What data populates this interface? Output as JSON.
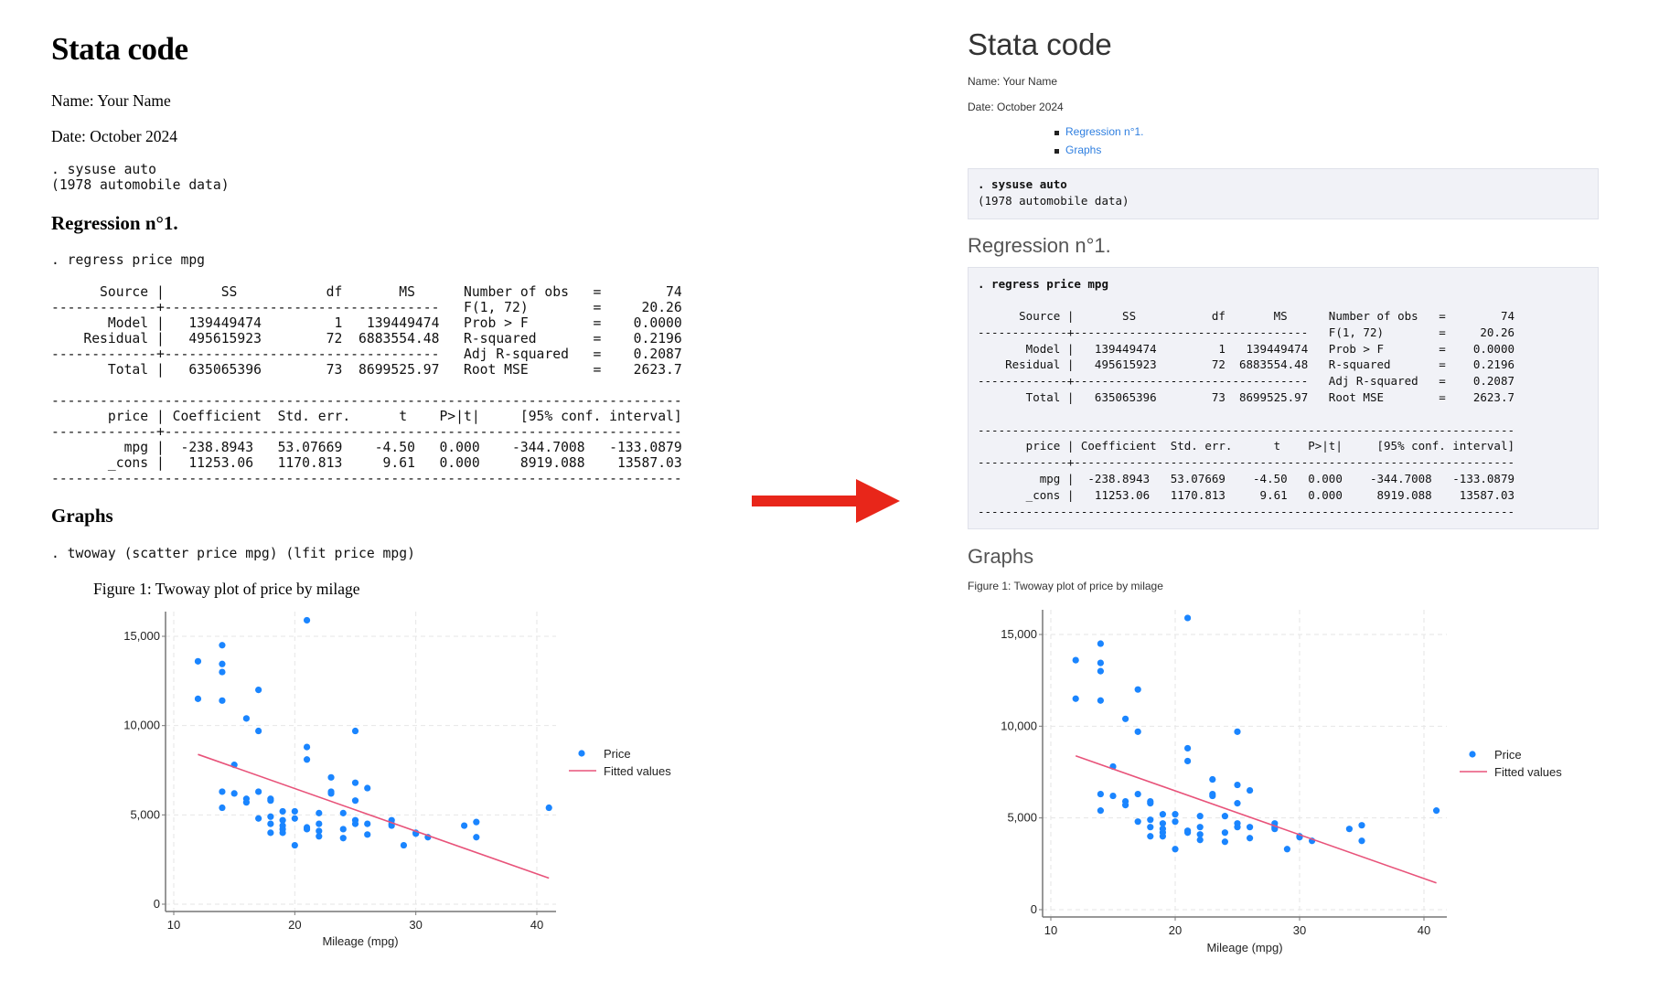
{
  "before": {
    "title": "Stata code",
    "name": "Name: Your Name",
    "date": "Date: October 2024",
    "code1": [
      ". sysuse auto",
      "(1978 automobile data)"
    ],
    "section1": "Regression n°1.",
    "cmd_regress": ". regress price mpg",
    "section2": "Graphs",
    "cmd_twoway": ". twoway (scatter price mpg) (lfit price mpg)",
    "figure_caption": "Figure 1: Twoway plot of price by milage"
  },
  "after": {
    "title": "Stata code",
    "name": "Name: Your Name",
    "date": "Date: October 2024",
    "toc": [
      "Regression n°1.",
      "Graphs"
    ],
    "code1": [
      ". sysuse auto",
      "(1978 automobile data)"
    ],
    "section1": "Regression n°1.",
    "cmd_regress": ". regress price mpg",
    "section2": "Graphs",
    "figure_caption": "Figure 1: Twoway plot of price by milage"
  },
  "regression_output": [
    "      Source |       SS           df       MS      Number of obs   =        74",
    "-------------+----------------------------------   F(1, 72)        =     20.26",
    "       Model |   139449474         1   139449474   Prob > F        =    0.0000",
    "    Residual |   495615923        72  6883554.48   R-squared       =    0.2196",
    "-------------+----------------------------------   Adj R-squared   =    0.2087",
    "       Total |   635065396        73  8699525.97   Root MSE        =    2623.7",
    "",
    "------------------------------------------------------------------------------",
    "       price | Coefficient  Std. err.      t    P>|t|     [95% conf. interval]",
    "-------------+----------------------------------------------------------------",
    "         mpg |  -238.8943   53.07669    -4.50   0.000    -344.7008   -133.0879",
    "       _cons |   11253.06   1170.813     9.61   0.000     8919.088    13587.03",
    "------------------------------------------------------------------------------"
  ],
  "colors": {
    "arrow": "#e8261a",
    "points": "#1a85ff",
    "fit": "#e8537a",
    "link": "#2f7fe0"
  },
  "chart_data": {
    "type": "scatter",
    "xlabel": "Mileage (mpg)",
    "ylabel": "",
    "xlim": [
      10,
      42
    ],
    "ylim": [
      0,
      16000
    ],
    "xticks": [
      "10",
      "20",
      "30",
      "40"
    ],
    "xtick_values": [
      10,
      20,
      30,
      40
    ],
    "yticks": [
      "0",
      "5,000",
      "10,000",
      "15,000"
    ],
    "ytick_values": [
      0,
      5000,
      10000,
      15000
    ],
    "grid": true,
    "legend": [
      "Price",
      "Fitted values"
    ],
    "legend_position": "right",
    "points": [
      [
        12,
        13600
      ],
      [
        12,
        11500
      ],
      [
        14,
        14500
      ],
      [
        14,
        13450
      ],
      [
        14,
        13000
      ],
      [
        14,
        11400
      ],
      [
        14,
        6300
      ],
      [
        14,
        5400
      ],
      [
        15,
        7800
      ],
      [
        15,
        6200
      ],
      [
        16,
        10400
      ],
      [
        16,
        5900
      ],
      [
        16,
        5700
      ],
      [
        17,
        12000
      ],
      [
        17,
        9700
      ],
      [
        17,
        6300
      ],
      [
        17,
        4800
      ],
      [
        18,
        5900
      ],
      [
        18,
        5800
      ],
      [
        18,
        4900
      ],
      [
        18,
        4500
      ],
      [
        18,
        4000
      ],
      [
        19,
        5200
      ],
      [
        19,
        4700
      ],
      [
        19,
        4400
      ],
      [
        19,
        4200
      ],
      [
        19,
        4000
      ],
      [
        20,
        5200
      ],
      [
        20,
        4800
      ],
      [
        20,
        3300
      ],
      [
        21,
        15900
      ],
      [
        21,
        8800
      ],
      [
        21,
        8100
      ],
      [
        21,
        4300
      ],
      [
        21,
        4200
      ],
      [
        22,
        5100
      ],
      [
        22,
        4500
      ],
      [
        22,
        4100
      ],
      [
        22,
        3800
      ],
      [
        23,
        7100
      ],
      [
        23,
        6300
      ],
      [
        23,
        6200
      ],
      [
        24,
        5100
      ],
      [
        24,
        4200
      ],
      [
        24,
        3700
      ],
      [
        25,
        9700
      ],
      [
        25,
        6800
      ],
      [
        25,
        5800
      ],
      [
        25,
        4700
      ],
      [
        25,
        4500
      ],
      [
        26,
        6500
      ],
      [
        26,
        4500
      ],
      [
        26,
        3900
      ],
      [
        28,
        4700
      ],
      [
        28,
        4500
      ],
      [
        28,
        4400
      ],
      [
        29,
        3300
      ],
      [
        30,
        4000
      ],
      [
        30,
        3950
      ],
      [
        31,
        3750
      ],
      [
        34,
        4400
      ],
      [
        35,
        4600
      ],
      [
        35,
        3750
      ],
      [
        41,
        5400
      ]
    ],
    "fit": {
      "intercept": 11253.06,
      "slope": -238.8943,
      "x_range": [
        12,
        41
      ]
    }
  }
}
